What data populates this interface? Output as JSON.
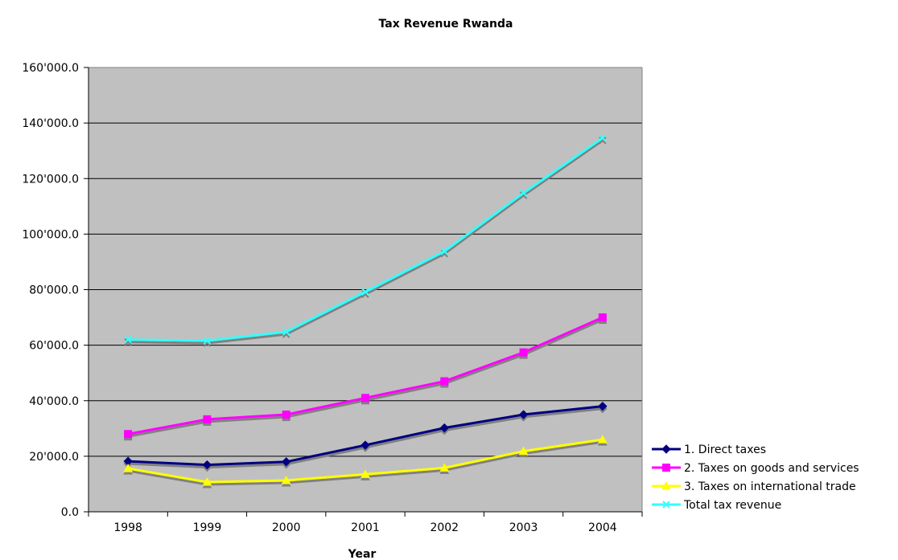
{
  "chart_data": {
    "type": "line",
    "title": "Tax Revenue Rwanda",
    "xlabel": "Year",
    "ylabel": "",
    "categories": [
      "1998",
      "1999",
      "2000",
      "2001",
      "2002",
      "2003",
      "2004"
    ],
    "ylim": [
      0,
      160000
    ],
    "yticks": [
      0,
      20000,
      40000,
      60000,
      80000,
      100000,
      120000,
      140000,
      160000
    ],
    "ytick_labels": [
      "0.0",
      "20'000.0",
      "40'000.0",
      "60'000.0",
      "80'000.0",
      "100'000.0",
      "120'000.0",
      "140'000.0",
      "160'000.0"
    ],
    "grid": true,
    "legend": "right",
    "plot_background": "#c0c0c0",
    "series": [
      {
        "name": "1. Direct taxes",
        "color": "#000080",
        "marker": "diamond",
        "values": [
          18200,
          16900,
          18000,
          24000,
          30200,
          35000,
          38000
        ]
      },
      {
        "name": "2. Taxes on goods and services",
        "color": "#ff00ff",
        "marker": "square",
        "values": [
          28000,
          33300,
          35000,
          41000,
          47000,
          57400,
          70000
        ]
      },
      {
        "name": "3. Taxes on international trade",
        "color": "#ffff00",
        "marker": "triangle",
        "values": [
          15600,
          10700,
          11300,
          13500,
          15800,
          21800,
          26000
        ]
      },
      {
        "name": "Total tax revenue",
        "color": "#33ffff",
        "marker": "x",
        "values": [
          62000,
          61600,
          64800,
          79200,
          93800,
          114800,
          134600
        ]
      }
    ]
  }
}
